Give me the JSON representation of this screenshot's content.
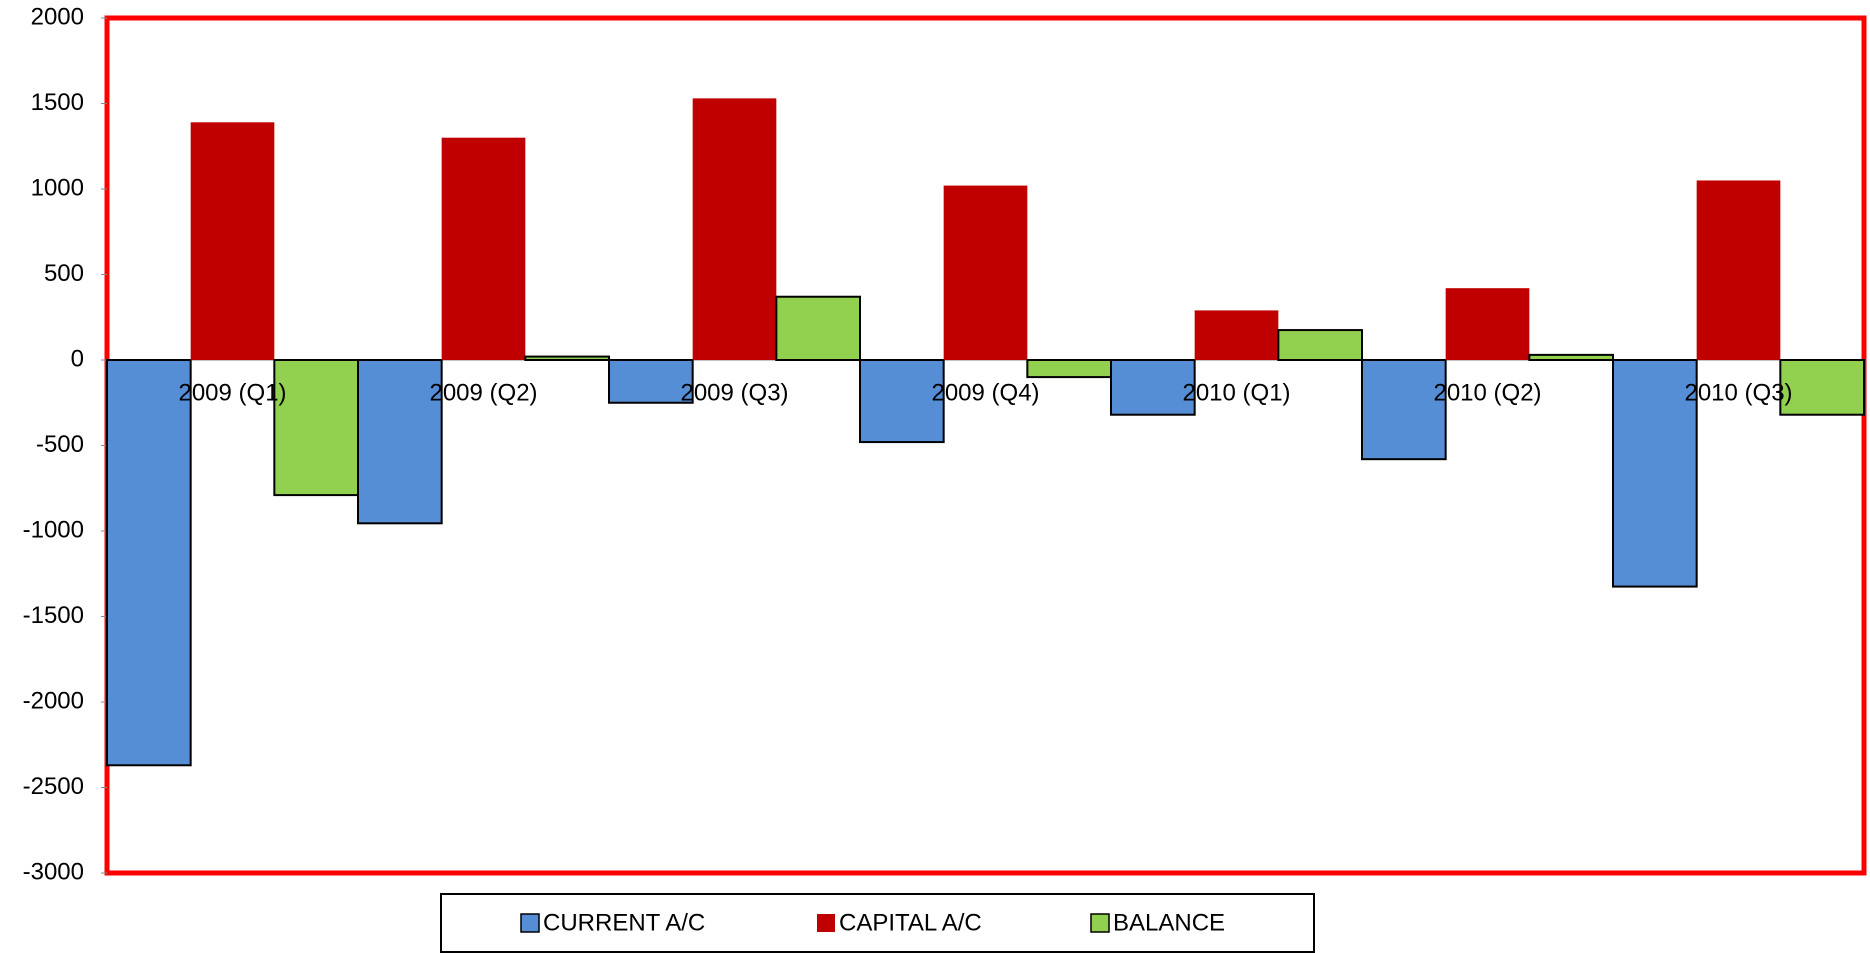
{
  "chart_data": {
    "type": "bar",
    "categories": [
      "2009 (Q1)",
      "2009 (Q2)",
      "2009 (Q3)",
      "2009 (Q4)",
      "2010 (Q1)",
      "2010 (Q2)",
      "2010 (Q3)"
    ],
    "series": [
      {
        "name": "CURRENT A/C",
        "color": "#558ed5",
        "values": [
          -2370,
          -955,
          -250,
          -480,
          -320,
          -580,
          -1325
        ]
      },
      {
        "name": "CAPITAL A/C",
        "color": "#c00000",
        "values": [
          1390,
          1300,
          1530,
          1020,
          290,
          420,
          1050
        ]
      },
      {
        "name": "BALANCE",
        "color": "#92d050",
        "values": [
          -790,
          20,
          370,
          -100,
          175,
          30,
          -320
        ]
      }
    ],
    "ylim": [
      -3000,
      2000
    ],
    "yticks": [
      -3000,
      -2500,
      -2000,
      -1500,
      -1000,
      -500,
      0,
      500,
      1000,
      1500,
      2000
    ],
    "legend": "bottom"
  }
}
